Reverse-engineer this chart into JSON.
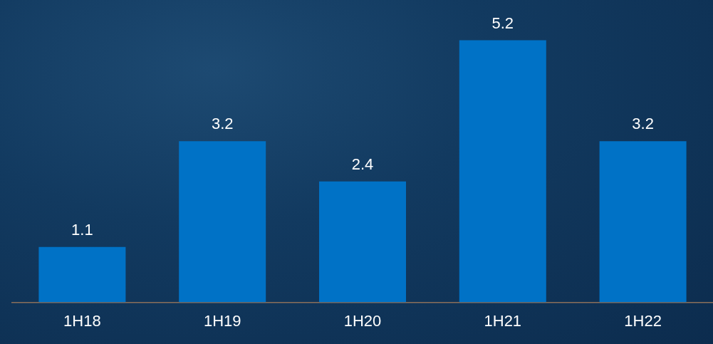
{
  "chart_data": {
    "type": "bar",
    "categories": [
      "1H18",
      "1H19",
      "1H20",
      "1H21",
      "1H22"
    ],
    "values": [
      1.1,
      3.2,
      2.4,
      5.2,
      3.2
    ],
    "color": "#0072c6",
    "data_labels": true
  }
}
